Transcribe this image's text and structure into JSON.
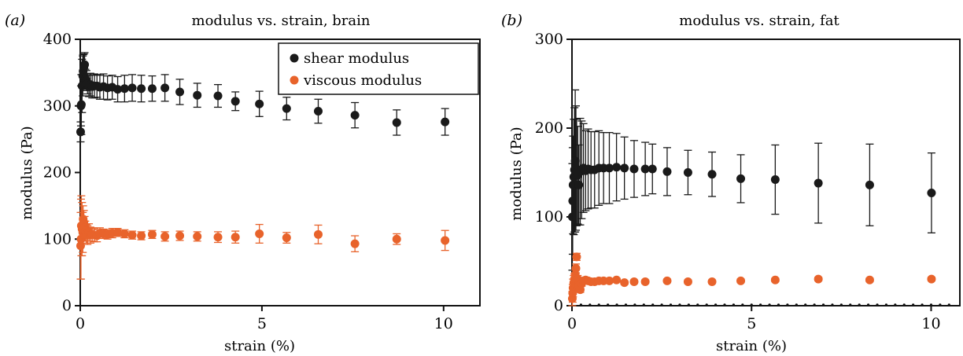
{
  "colors": {
    "shear": "#1a1a1a",
    "viscous": "#e8632b",
    "axis": "#111111"
  },
  "chart_data": [
    {
      "type": "scatter",
      "panel": "(a)",
      "title": "modulus vs. strain, brain",
      "xlabel": "strain (%)",
      "ylabel": "modulus (Pa)",
      "xlim": [
        0,
        11
      ],
      "ylim": [
        0,
        400
      ],
      "xticks": [
        0,
        5,
        10
      ],
      "yticks": [
        0,
        100,
        200,
        300,
        400
      ],
      "grid": false,
      "legend": {
        "placement": "top-right",
        "entries": [
          "shear modulus",
          "viscous modulus"
        ]
      },
      "series": [
        {
          "name": "shear modulus",
          "color_key": "shear",
          "points": [
            [
              0.01,
              261,
              15
            ],
            [
              0.02,
              300,
              30
            ],
            [
              0.03,
              302,
              45
            ],
            [
              0.05,
              330,
              40
            ],
            [
              0.07,
              345,
              30
            ],
            [
              0.08,
              352,
              25
            ],
            [
              0.1,
              358,
              20
            ],
            [
              0.12,
              362,
              18
            ],
            [
              0.14,
              340,
              15
            ],
            [
              0.17,
              338,
              15
            ],
            [
              0.2,
              333,
              15
            ],
            [
              0.24,
              330,
              16
            ],
            [
              0.28,
              332,
              17
            ],
            [
              0.33,
              329,
              17
            ],
            [
              0.39,
              330,
              18
            ],
            [
              0.46,
              330,
              17
            ],
            [
              0.54,
              328,
              18
            ],
            [
              0.64,
              329,
              19
            ],
            [
              0.75,
              327,
              18
            ],
            [
              0.88,
              328,
              18
            ],
            [
              1.03,
              325,
              19
            ],
            [
              1.22,
              326,
              20
            ],
            [
              1.43,
              327,
              20
            ],
            [
              1.68,
              326,
              20
            ],
            [
              1.98,
              326,
              19
            ],
            [
              2.33,
              327,
              20
            ],
            [
              2.74,
              321,
              19
            ],
            [
              3.22,
              316,
              18
            ],
            [
              3.79,
              315,
              17
            ],
            [
              4.27,
              307,
              14
            ],
            [
              4.93,
              303,
              19
            ],
            [
              5.68,
              296,
              17
            ],
            [
              6.55,
              292,
              18
            ],
            [
              7.56,
              286,
              19
            ],
            [
              8.71,
              275,
              19
            ],
            [
              10.04,
              276,
              20
            ]
          ]
        },
        {
          "name": "viscous modulus",
          "color_key": "viscous",
          "points": [
            [
              0.01,
              90,
              50
            ],
            [
              0.02,
              100,
              60
            ],
            [
              0.03,
              120,
              45
            ],
            [
              0.05,
              115,
              40
            ],
            [
              0.07,
              110,
              30
            ],
            [
              0.08,
              130,
              20
            ],
            [
              0.1,
              125,
              18
            ],
            [
              0.12,
              118,
              16
            ],
            [
              0.14,
              112,
              15
            ],
            [
              0.17,
              108,
              14
            ],
            [
              0.2,
              106,
              14
            ],
            [
              0.24,
              110,
              13
            ],
            [
              0.28,
              106,
              12
            ],
            [
              0.33,
              107,
              10
            ],
            [
              0.39,
              106,
              10
            ],
            [
              0.46,
              105,
              9
            ],
            [
              0.54,
              109,
              8
            ],
            [
              0.64,
              108,
              7
            ],
            [
              0.75,
              107,
              7
            ],
            [
              0.88,
              109,
              7
            ],
            [
              1.03,
              110,
              6
            ],
            [
              1.22,
              108,
              6
            ],
            [
              1.43,
              106,
              6
            ],
            [
              1.68,
              105,
              6
            ],
            [
              1.98,
              107,
              6
            ],
            [
              2.33,
              104,
              7
            ],
            [
              2.74,
              105,
              7
            ],
            [
              3.22,
              104,
              7
            ],
            [
              3.79,
              103,
              8
            ],
            [
              4.27,
              103,
              9
            ],
            [
              4.93,
              108,
              14
            ],
            [
              5.68,
              102,
              8
            ],
            [
              6.55,
              107,
              14
            ],
            [
              7.56,
              93,
              12
            ],
            [
              8.71,
              100,
              8
            ],
            [
              10.04,
              98,
              15
            ]
          ]
        }
      ]
    },
    {
      "type": "scatter",
      "panel": "(b)",
      "title": "modulus vs. strain, fat",
      "xlabel": "strain (%)",
      "ylabel": "modulus (Pa)",
      "xlim": [
        0,
        10.8
      ],
      "ylim": [
        0,
        300
      ],
      "xticks": [
        0,
        5,
        10
      ],
      "yticks": [
        0,
        100,
        200,
        300
      ],
      "grid": false,
      "series": [
        {
          "name": "shear modulus",
          "color_key": "shear",
          "points": [
            [
              0.01,
              100,
              60
            ],
            [
              0.02,
              118,
              60
            ],
            [
              0.03,
              136,
              55
            ],
            [
              0.05,
              145,
              65
            ],
            [
              0.07,
              153,
              70
            ],
            [
              0.09,
              163,
              80
            ],
            [
              0.11,
              155,
              70
            ],
            [
              0.13,
              150,
              60
            ],
            [
              0.16,
              147,
              55
            ],
            [
              0.19,
              136,
              45
            ],
            [
              0.23,
              151,
              60
            ],
            [
              0.27,
              153,
              55
            ],
            [
              0.32,
              155,
              50
            ],
            [
              0.38,
              152,
              45
            ],
            [
              0.45,
              154,
              45
            ],
            [
              0.53,
              153,
              43
            ],
            [
              0.63,
              153,
              43
            ],
            [
              0.75,
              155,
              42
            ],
            [
              0.88,
              155,
              40
            ],
            [
              1.04,
              155,
              40
            ],
            [
              1.24,
              156,
              38
            ],
            [
              1.46,
              155,
              35
            ],
            [
              1.73,
              154,
              32
            ],
            [
              2.04,
              154,
              30
            ],
            [
              2.24,
              154,
              28
            ],
            [
              2.65,
              151,
              27
            ],
            [
              3.23,
              150,
              25
            ],
            [
              3.9,
              148,
              25
            ],
            [
              4.7,
              143,
              27
            ],
            [
              5.66,
              142,
              39
            ],
            [
              6.86,
              138,
              45
            ],
            [
              8.29,
              136,
              46
            ],
            [
              10.01,
              127,
              45
            ]
          ]
        },
        {
          "name": "viscous modulus",
          "color_key": "viscous",
          "points": [
            [
              0.01,
              8,
              8
            ],
            [
              0.02,
              14,
              10
            ],
            [
              0.03,
              20,
              10
            ],
            [
              0.05,
              26,
              8
            ],
            [
              0.07,
              30,
              6
            ],
            [
              0.09,
              35,
              5
            ],
            [
              0.11,
              42,
              5
            ],
            [
              0.13,
              55,
              4
            ],
            [
              0.16,
              30,
              4
            ],
            [
              0.19,
              22,
              4
            ],
            [
              0.23,
              18,
              3
            ],
            [
              0.27,
              25,
              3
            ],
            [
              0.32,
              28,
              3
            ],
            [
              0.38,
              29,
              3
            ],
            [
              0.45,
              28,
              3
            ],
            [
              0.53,
              27,
              2
            ],
            [
              0.63,
              27,
              2
            ],
            [
              0.75,
              28,
              2
            ],
            [
              0.88,
              28,
              2
            ],
            [
              1.04,
              28,
              2
            ],
            [
              1.24,
              29,
              2
            ],
            [
              1.46,
              26,
              2
            ],
            [
              1.73,
              27,
              2
            ],
            [
              2.04,
              27,
              2
            ],
            [
              2.65,
              28,
              2
            ],
            [
              3.23,
              27,
              2
            ],
            [
              3.9,
              27,
              2
            ],
            [
              4.7,
              28,
              2
            ],
            [
              5.66,
              29,
              2
            ],
            [
              6.86,
              30,
              2
            ],
            [
              8.29,
              29,
              2
            ],
            [
              10.01,
              30,
              2
            ]
          ]
        },
        {
          "name": "",
          "color_key": "axis",
          "marker": "tiny",
          "points": [
            [
              0.25,
              1,
              0
            ],
            [
              0.5,
              1,
              0
            ],
            [
              0.75,
              1,
              0
            ],
            [
              1.0,
              1,
              0
            ],
            [
              1.25,
              1,
              0
            ],
            [
              1.5,
              1,
              0
            ],
            [
              1.75,
              1,
              0
            ],
            [
              2.0,
              1,
              0
            ],
            [
              2.25,
              1,
              0
            ],
            [
              2.5,
              1,
              0
            ],
            [
              2.75,
              1,
              0
            ],
            [
              3.0,
              1,
              0
            ],
            [
              3.25,
              1,
              0
            ],
            [
              3.5,
              1,
              0
            ],
            [
              3.75,
              1,
              0
            ],
            [
              4.0,
              1,
              0
            ],
            [
              4.25,
              1,
              0
            ],
            [
              4.5,
              1,
              0
            ],
            [
              4.75,
              1,
              0
            ],
            [
              5.0,
              1,
              0
            ],
            [
              5.25,
              1,
              0
            ],
            [
              5.5,
              1,
              0
            ],
            [
              5.75,
              1,
              0
            ],
            [
              6.0,
              1,
              0
            ],
            [
              6.25,
              1,
              0
            ],
            [
              6.5,
              1,
              0
            ],
            [
              6.75,
              1,
              0
            ],
            [
              7.0,
              1,
              0
            ],
            [
              7.25,
              1,
              0
            ],
            [
              7.5,
              1,
              0
            ],
            [
              7.75,
              1,
              0
            ],
            [
              8.0,
              1,
              0
            ],
            [
              8.25,
              1,
              0
            ],
            [
              8.5,
              1,
              0
            ],
            [
              8.75,
              1,
              0
            ],
            [
              9.0,
              1,
              0
            ],
            [
              9.25,
              1,
              0
            ],
            [
              9.5,
              1,
              0
            ],
            [
              9.75,
              1,
              0
            ],
            [
              10.0,
              1,
              0
            ],
            [
              10.25,
              1,
              0
            ],
            [
              10.5,
              1,
              0
            ]
          ]
        }
      ]
    }
  ]
}
